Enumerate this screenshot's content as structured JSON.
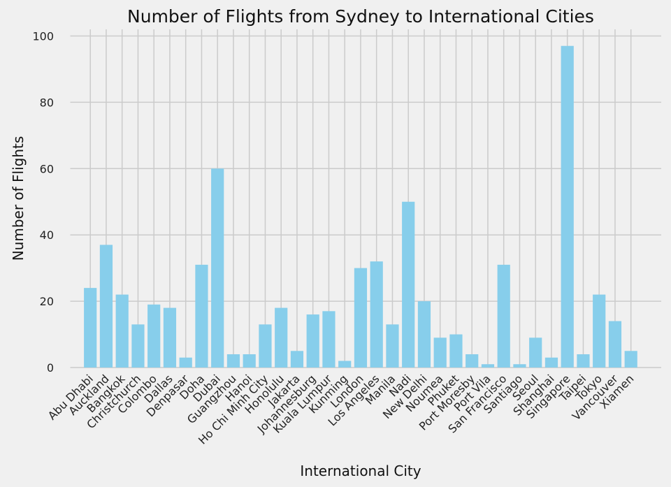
{
  "chart_data": {
    "type": "bar",
    "title": "Number of Flights from Sydney to International Cities",
    "xlabel": "International City",
    "ylabel": "Number of Flights",
    "ylim": [
      0,
      102
    ],
    "yticks": [
      0,
      20,
      40,
      60,
      80,
      100
    ],
    "grid": true,
    "bar_color": "#87ceeb",
    "background_color": "#f0f0f0",
    "grid_color": "#cbcbcb",
    "categories": [
      "Abu Dhabi",
      "Auckland",
      "Bangkok",
      "Christchurch",
      "Colombo",
      "Dallas",
      "Denpasar",
      "Doha",
      "Dubai",
      "Guangzhou",
      "Hanoi",
      "Ho Chi Minh City",
      "Honolulu",
      "Jakarta",
      "Johannesburg",
      "Kuala Lumpur",
      "Kunming",
      "London",
      "Los Angeles",
      "Manila",
      "Nadi",
      "New Delhi",
      "Noumea",
      "Phuket",
      "Port Moresby",
      "Port Vila",
      "San Francisco",
      "Santiago",
      "Seoul",
      "Shanghai",
      "Singapore",
      "Taipei",
      "Tokyo",
      "Vancouver",
      "Xiamen"
    ],
    "values": [
      24,
      37,
      22,
      13,
      19,
      18,
      3,
      31,
      60,
      4,
      4,
      13,
      18,
      5,
      16,
      17,
      2,
      30,
      32,
      13,
      50,
      20,
      9,
      10,
      4,
      1,
      31,
      1,
      9,
      3,
      97,
      4,
      22,
      14,
      5
    ]
  }
}
